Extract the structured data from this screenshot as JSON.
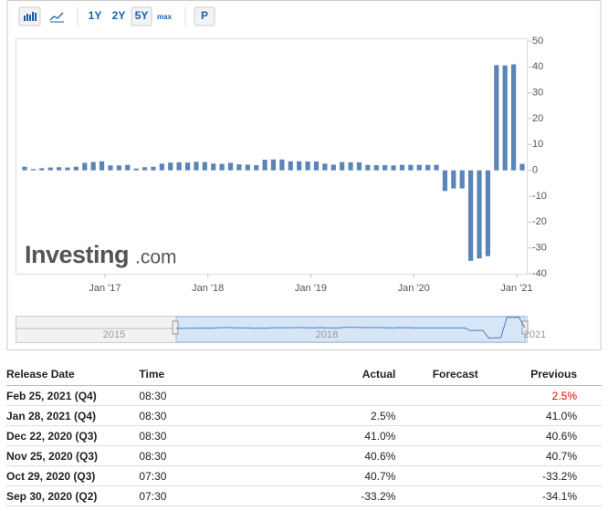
{
  "toolbar": {
    "buttons": [
      "1Y",
      "2Y",
      "5Y",
      "max",
      "P"
    ]
  },
  "chart_data": {
    "type": "bar",
    "categories": [
      null,
      null,
      null,
      null,
      null,
      null,
      null,
      null,
      null,
      null,
      "Jan '17",
      null,
      null,
      null,
      null,
      null,
      null,
      null,
      null,
      null,
      null,
      null,
      "Jan '18",
      null,
      null,
      null,
      null,
      null,
      null,
      null,
      null,
      null,
      null,
      null,
      "Jan '19",
      null,
      null,
      null,
      null,
      null,
      null,
      null,
      null,
      null,
      null,
      null,
      "Jan '20",
      null,
      null,
      null,
      null,
      null,
      null,
      null,
      null,
      null,
      null,
      null,
      "Jan '21"
    ],
    "values": [
      1.4,
      0.5,
      0.8,
      1.1,
      1.2,
      1.1,
      1.4,
      2.9,
      3.2,
      3.5,
      1.9,
      1.9,
      2.1,
      0.7,
      1.2,
      1.4,
      2.6,
      3.0,
      3.1,
      3.0,
      3.3,
      3.2,
      2.6,
      2.5,
      2.9,
      2.3,
      2.2,
      2.0,
      4.1,
      4.2,
      4.2,
      3.5,
      3.5,
      3.4,
      3.4,
      2.6,
      2.2,
      3.2,
      3.1,
      3.1,
      2.1,
      2.0,
      2.0,
      1.9,
      2.1,
      2.1,
      2.1,
      2.1,
      2.1,
      -8,
      -7,
      -7,
      -35,
      -34.1,
      -33.2,
      40.7,
      40.6,
      41.0,
      2.5
    ],
    "color": "#5b84b8",
    "ylim": [
      -40,
      50
    ],
    "yticks": [
      -40,
      -30,
      -20,
      -10,
      0,
      10,
      20,
      30,
      40,
      50
    ]
  },
  "watermark": {
    "brand": "Investing",
    "suffix": ".com"
  },
  "navigator": {
    "labels": [
      "2015",
      "2018",
      "2021"
    ]
  },
  "table": {
    "headers": [
      "Release Date",
      "Time",
      "Actual",
      "Forecast",
      "Previous"
    ],
    "rows": [
      {
        "date": "Feb 25, 2021 (Q4)",
        "time": "08:30",
        "previous": "2.5%"
      },
      {
        "date": "Jan 28, 2021 (Q4)",
        "time": "08:30",
        "actual": "2.5%",
        "previous": "41.0%"
      },
      {
        "date": "Dec 22, 2020 (Q3)",
        "time": "08:30",
        "actual": "41.0%",
        "previous": "40.6%"
      },
      {
        "date": "Nov 25, 2020 (Q3)",
        "time": "08:30",
        "actual": "40.6%",
        "previous": "40.7%"
      },
      {
        "date": "Oct 29, 2020 (Q3)",
        "time": "07:30",
        "actual": "40.7%",
        "previous": "-33.2%"
      },
      {
        "date": "Sep 30, 2020 (Q2)",
        "time": "07:30",
        "actual": "-33.2%",
        "previous": "-34.1%"
      }
    ]
  }
}
